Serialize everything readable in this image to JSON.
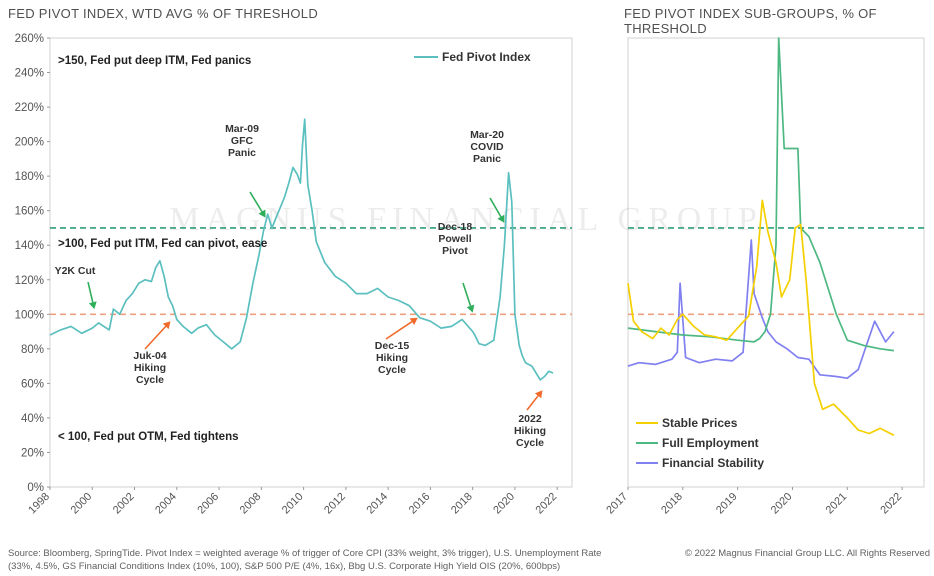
{
  "left_title": "FED PIVOT INDEX, WTD AVG % OF THRESHOLD",
  "right_title": "FED PIVOT INDEX SUB-GROUPS, % OF THRESHOLD",
  "source_text": "Source: Bloomberg, SpringTide. Pivot Index = weighted average % of trigger of Core CPI (33% weight, 3% trigger), U.S. Unemployment Rate (33%, 4.5%, GS Financial Conditions Index (10%, 100), S&P 500 P/E (4%, 16x), Bbg U.S. Corporate High Yield OIS (20%, 600bps)",
  "copyright": "© 2022 Magnus Financial Group LLC. All Rights Reserved",
  "watermark": "MAGNUS FINANCIAL GROUP",
  "colors": {
    "pivot": "#5bbfbf",
    "stable": "#f5d000",
    "employment": "#4db882",
    "financial": "#8080f0",
    "ref150": "#2e9e78",
    "ref100": "#f0a080",
    "arrow_green": "#2eae5a",
    "arrow_orange": "#f06a2a"
  },
  "chart_data": [
    {
      "type": "line",
      "title": "FED PIVOT INDEX, WTD AVG % OF THRESHOLD",
      "ylim": [
        0,
        260
      ],
      "xlim": [
        1998,
        2022.7
      ],
      "yticks": [
        "0%",
        "20%",
        "40%",
        "60%",
        "80%",
        "100%",
        "120%",
        "140%",
        "160%",
        "180%",
        "200%",
        "220%",
        "240%",
        "260%"
      ],
      "xticks": [
        "1998",
        "2000",
        "2002",
        "2004",
        "2006",
        "2008",
        "2010",
        "2012",
        "2014",
        "2016",
        "2018",
        "2020",
        "2022"
      ],
      "legend": "top-right",
      "reference_lines": [
        {
          "y": 150,
          "style": "dashed",
          "color": "#2e9e78"
        },
        {
          "y": 100,
          "style": "dashed",
          "color": "#f0a080"
        }
      ],
      "series": [
        {
          "name": "Fed Pivot Index",
          "x": [
            1998,
            1998.5,
            1999,
            1999.5,
            2000,
            2000.3,
            2000.8,
            2001,
            2001.3,
            2001.6,
            2001.9,
            2002.2,
            2002.5,
            2002.8,
            2003,
            2003.2,
            2003.4,
            2003.6,
            2003.8,
            2004,
            2004.3,
            2004.7,
            2005,
            2005.4,
            2005.8,
            2006.2,
            2006.6,
            2007,
            2007.3,
            2007.6,
            2007.9,
            2008.1,
            2008.3,
            2008.5,
            2008.7,
            2008.9,
            2009.1,
            2009.3,
            2009.5,
            2009.7,
            2009.85,
            2009.95,
            2010.05,
            2010.2,
            2010.4,
            2010.6,
            2011,
            2011.5,
            2012,
            2012.5,
            2013,
            2013.5,
            2014,
            2014.5,
            2015,
            2015.5,
            2016,
            2016.5,
            2017,
            2017.5,
            2018,
            2018.1,
            2018.3,
            2018.6,
            2019,
            2019.3,
            2019.5,
            2019.7,
            2019.85,
            2020,
            2020.2,
            2020.35,
            2020.5,
            2020.8,
            2021,
            2021.2,
            2021.4,
            2021.6,
            2021.8
          ],
          "values": [
            88,
            91,
            93,
            89,
            92,
            95,
            91,
            103,
            100,
            108,
            112,
            118,
            120,
            119,
            127,
            131,
            122,
            110,
            105,
            97,
            93,
            89,
            92,
            94,
            88,
            84,
            80,
            84,
            98,
            118,
            135,
            148,
            158,
            150,
            156,
            162,
            168,
            176,
            185,
            181,
            176,
            198,
            213,
            175,
            160,
            142,
            130,
            122,
            118,
            112,
            112,
            115,
            110,
            108,
            105,
            98,
            96,
            92,
            93,
            97,
            90,
            88,
            83,
            82,
            85,
            110,
            140,
            182,
            165,
            100,
            82,
            76,
            72,
            70,
            66,
            62,
            64,
            67,
            66
          ]
        }
      ],
      "annotations": [
        {
          "text": ">150, Fed put deep ITM, Fed panics"
        },
        {
          "text": ">100, Fed put ITM, Fed can pivot, ease"
        },
        {
          "text": "< 100, Fed put OTM, Fed tightens"
        },
        {
          "text": "Y2K Cut",
          "x": 2000.1,
          "y": 103,
          "color": "green"
        },
        {
          "text": "Mar-09\nGFC\nPanic",
          "x": 2008.2,
          "y": 156,
          "color": "green"
        },
        {
          "text": "Dec-18\nPowell\nPivot",
          "x": 2018.0,
          "y": 101,
          "color": "green"
        },
        {
          "text": "Mar-20\nCOVID\nPanic",
          "x": 2019.5,
          "y": 153,
          "color": "green"
        },
        {
          "text": "Juk-04\nHiking\nCycle",
          "x": 2003.7,
          "y": 96,
          "color": "orange"
        },
        {
          "text": "Dec-15\nHiking\nCycle",
          "x": 2015.4,
          "y": 98,
          "color": "orange"
        },
        {
          "text": "2022\nHiking\nCycle",
          "x": 2021.3,
          "y": 56,
          "color": "orange"
        }
      ]
    },
    {
      "type": "line",
      "title": "FED PIVOT INDEX SUB-GROUPS, % OF THRESHOLD",
      "xlim": [
        2017,
        2022.4
      ],
      "ylim": [
        0,
        260
      ],
      "xticks": [
        "2017",
        "2018",
        "2019",
        "2020",
        "2021",
        "2022"
      ],
      "legend": "bottom-left",
      "reference_lines": [
        {
          "y": 150,
          "style": "dashed",
          "color": "#2e9e78"
        },
        {
          "y": 100,
          "style": "dashed",
          "color": "#f0a080"
        }
      ],
      "series": [
        {
          "name": "Stable Prices",
          "x": [
            2017,
            2017.1,
            2017.25,
            2017.45,
            2017.6,
            2017.75,
            2017.9,
            2018,
            2018.2,
            2018.4,
            2018.6,
            2018.8,
            2019,
            2019.2,
            2019.35,
            2019.45,
            2019.55,
            2019.7,
            2019.8,
            2019.95,
            2020.05,
            2020.15,
            2020.25,
            2020.4,
            2020.55,
            2020.75,
            2021,
            2021.2,
            2021.4,
            2021.6,
            2021.85
          ],
          "values": [
            118,
            96,
            90,
            86,
            92,
            88,
            97,
            100,
            93,
            88,
            87,
            85,
            92,
            99,
            128,
            166,
            148,
            130,
            110,
            120,
            150,
            152,
            120,
            60,
            45,
            48,
            40,
            33,
            31,
            34,
            30
          ]
        },
        {
          "name": "Full Employment",
          "x": [
            2017,
            2017.5,
            2018,
            2018.5,
            2019,
            2019.3,
            2019.4,
            2019.5,
            2019.6,
            2019.7,
            2019.75,
            2019.85,
            2020.1,
            2020.15,
            2020.3,
            2020.5,
            2020.8,
            2021,
            2021.3,
            2021.6,
            2021.85
          ],
          "values": [
            92,
            90,
            88,
            87,
            85,
            84,
            86,
            90,
            100,
            140,
            260,
            196,
            196,
            150,
            145,
            130,
            100,
            85,
            82,
            80,
            79
          ]
        },
        {
          "name": "Financial Stability",
          "x": [
            2017,
            2017.2,
            2017.5,
            2017.8,
            2017.9,
            2017.95,
            2018.05,
            2018.3,
            2018.6,
            2018.9,
            2019.1,
            2019.25,
            2019.3,
            2019.45,
            2019.55,
            2019.7,
            2019.9,
            2020.1,
            2020.3,
            2020.5,
            2020.8,
            2021,
            2021.2,
            2021.35,
            2021.5,
            2021.7,
            2021.85
          ],
          "values": [
            70,
            72,
            71,
            74,
            78,
            118,
            75,
            72,
            74,
            73,
            78,
            143,
            112,
            98,
            90,
            84,
            80,
            75,
            74,
            65,
            64,
            63,
            68,
            82,
            96,
            84,
            90
          ]
        }
      ]
    }
  ]
}
